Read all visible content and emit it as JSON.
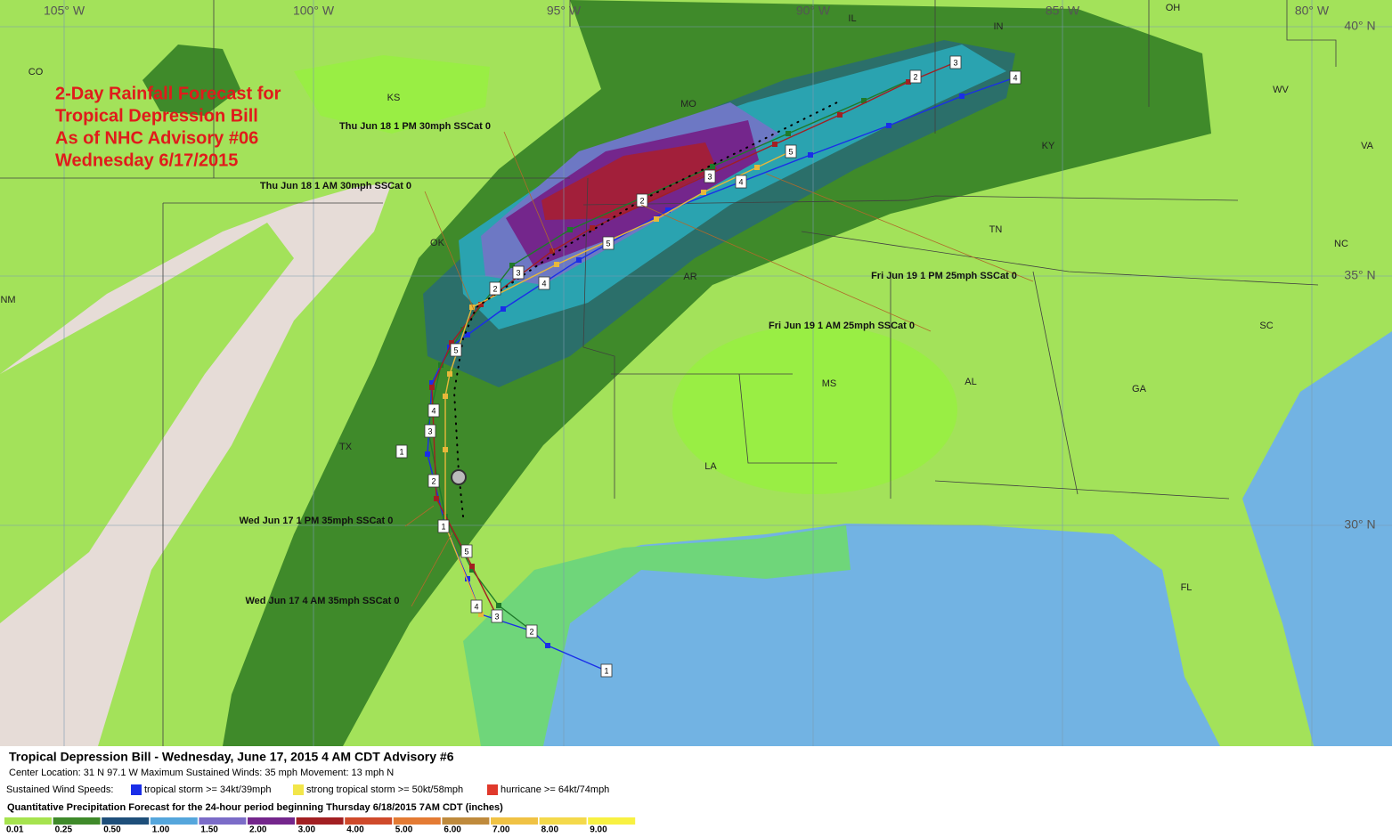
{
  "map": {
    "title_lines": [
      "2-Day Rainfall Forecast for",
      "Tropical Depression Bill",
      "As of NHC Advisory #06",
      "Wednesday 6/17/2015"
    ],
    "longitude_labels": [
      "105° W",
      "100° W",
      "95° W",
      "90° W",
      "85° W",
      "80° W"
    ],
    "latitude_labels": [
      "40° N",
      "35° N",
      "30° N"
    ],
    "state_labels": [
      "CO",
      "KS",
      "MO",
      "IL",
      "IN",
      "OH",
      "WV",
      "VA",
      "KY",
      "TN",
      "NC",
      "OK",
      "AR",
      "NM",
      "TX",
      "MS",
      "AL",
      "GA",
      "SC",
      "LA",
      "FL"
    ],
    "forecast_annotations": [
      "Thu Jun 18 1 PM 30mph SSCat 0",
      "Thu Jun 18 1 AM 30mph SSCat 0",
      "Fri Jun 19 1 PM 25mph SSCat 0",
      "Fri Jun 19 1 AM 25mph SSCat 0",
      "Wed Jun 17 1 PM 35mph SSCat 0",
      "Wed Jun 17 4 AM 35mph SSCat 0"
    ],
    "track_point_labels": [
      "1",
      "2",
      "3",
      "4",
      "1",
      "5",
      "2",
      "1",
      "3",
      "4",
      "5",
      "2",
      "3",
      "4",
      "5",
      "2",
      "3",
      "4",
      "5",
      "2",
      "3",
      "4"
    ]
  },
  "footer": {
    "heading": "Tropical Depression Bill  -  Wednesday, June 17, 2015  4 AM CDT   Advisory #6",
    "details": "Center Location: 31 N  97.1 W   Maximum Sustained Winds: 35 mph  Movement: 13 mph N",
    "wind_label": "Sustained Wind Speeds:",
    "wind_categories": [
      {
        "label": "tropical storm >= 34kt/39mph",
        "color": "#1a2ee8"
      },
      {
        "label": "strong tropical storm >= 50kt/58mph",
        "color": "#f2e64a"
      },
      {
        "label": "hurricane >= 64kt/74mph",
        "color": "#e0392b"
      }
    ],
    "precip_title": "Quantitative Precipitation Forecast for the 24-hour period beginning Thursday 6/18/2015 7AM CDT (inches)",
    "precip_scale": [
      {
        "label": "0.01",
        "color": "#a6e34f"
      },
      {
        "label": "0.25",
        "color": "#3f8a2a"
      },
      {
        "label": "0.50",
        "color": "#1e4f7a"
      },
      {
        "label": "1.00",
        "color": "#55a6dc"
      },
      {
        "label": "1.50",
        "color": "#7b6cc8"
      },
      {
        "label": "2.00",
        "color": "#74268c"
      },
      {
        "label": "3.00",
        "color": "#a21f22"
      },
      {
        "label": "4.00",
        "color": "#cf4a2b"
      },
      {
        "label": "5.00",
        "color": "#e47b34"
      },
      {
        "label": "6.00",
        "color": "#bf8a3c"
      },
      {
        "label": "7.00",
        "color": "#f0c244"
      },
      {
        "label": "8.00",
        "color": "#f4d94b"
      },
      {
        "label": "9.00",
        "color": "#f8f142"
      }
    ]
  }
}
